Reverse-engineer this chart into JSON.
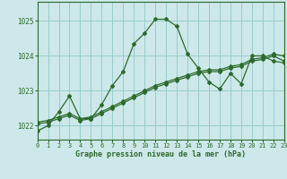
{
  "title": "Graphe pression niveau de la mer (hPa)",
  "background_color": "#cce8e8",
  "grid_color": "#99cccc",
  "line_color": "#2d6a2d",
  "xlim": [
    0,
    23
  ],
  "ylim": [
    1021.6,
    1025.55
  ],
  "yticks": [
    1022,
    1023,
    1024,
    1025
  ],
  "xticks": [
    0,
    1,
    2,
    3,
    4,
    5,
    6,
    7,
    8,
    9,
    10,
    11,
    12,
    13,
    14,
    15,
    16,
    17,
    18,
    19,
    20,
    21,
    22,
    23
  ],
  "series_main": [
    1021.85,
    1022.0,
    1022.4,
    1022.85,
    1022.2,
    1022.2,
    1022.6,
    1023.15,
    1023.55,
    1024.35,
    1024.65,
    1025.05,
    1025.05,
    1024.85,
    1024.05,
    1023.65,
    1023.25,
    1023.05,
    1023.5,
    1023.2,
    1024.0,
    1024.0,
    1023.85,
    1023.8
  ],
  "series_diag1": [
    1022.05,
    1022.1,
    1022.2,
    1022.3,
    1022.15,
    1022.2,
    1022.35,
    1022.5,
    1022.65,
    1022.8,
    1022.95,
    1023.1,
    1023.2,
    1023.3,
    1023.4,
    1023.5,
    1023.55,
    1023.55,
    1023.65,
    1023.7,
    1023.85,
    1023.9,
    1024.0,
    1023.85
  ],
  "series_diag2": [
    1022.1,
    1022.15,
    1022.25,
    1022.35,
    1022.2,
    1022.25,
    1022.4,
    1022.55,
    1022.7,
    1022.85,
    1023.0,
    1023.15,
    1023.25,
    1023.35,
    1023.45,
    1023.55,
    1023.6,
    1023.6,
    1023.7,
    1023.75,
    1023.9,
    1023.95,
    1024.05,
    1024.0
  ]
}
